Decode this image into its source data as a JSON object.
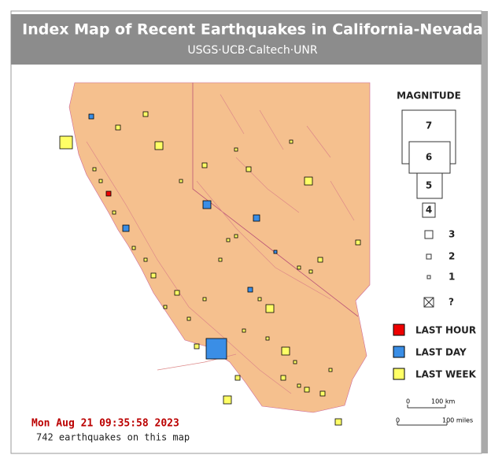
{
  "header": {
    "title": "Index Map of Recent Earthquakes in California-Nevada",
    "subtitle": "USGS·UCB·Caltech·UNR"
  },
  "legend": {
    "title": "MAGNITUDE",
    "sizes": [
      "7",
      "6",
      "5",
      "4",
      "3",
      "2",
      "1",
      "?"
    ],
    "colors": [
      "LAST HOUR",
      "LAST DAY",
      "LAST WEEK"
    ]
  },
  "scale": {
    "km": [
      "0",
      "100 km"
    ],
    "miles": [
      "0",
      "100 miles"
    ]
  },
  "footer": {
    "timestamp": "Mon Aug 21 09:35:58 2023",
    "count": "742 earthquakes on this map"
  }
}
